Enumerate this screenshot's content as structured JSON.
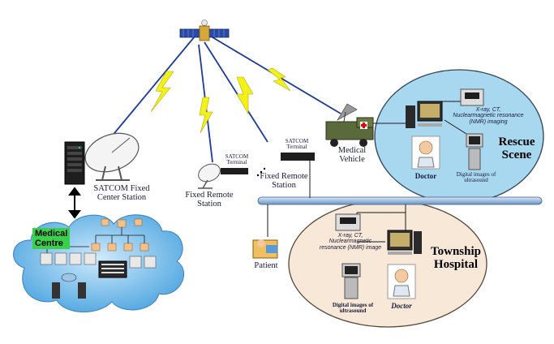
{
  "labels": {
    "satcom_fixed_center": "SATCOM Fixed\nCenter Station",
    "medical_centre": "Medical\nCentre",
    "fixed_remote_1": "Fixed Remote\nStation",
    "satcom_terminal_1": "SATCOM\nTerminal",
    "fixed_remote_2": "Fixed Remote\nStation",
    "satcom_terminal_2": "SATCOM\nTerminal",
    "medical_vehicle": "Medical\nVehicle",
    "patient": "Patient",
    "rescue_scene": "Rescue\nScene",
    "rescue_xray": "X-ray, CT,\nNuclearmagnetic resonance\n(NMR) imaging",
    "rescue_doctor": "Doctor",
    "rescue_ultrasound": "Digital images of\nultrasound",
    "township_hospital": "Township\nHospital",
    "township_xray": "X-ray, CT,\nNuclearmagnetic\nresonance (NMR) image",
    "township_ultrasound": "Digital images of\nultrasound",
    "township_doctor": "Doctor"
  },
  "colors": {
    "rescue_bg": "#a8d8f0",
    "township_bg": "#f7e8d8",
    "cloud": "#6fb8e8",
    "bus": "#8fb4d8",
    "lightning": "#f2f21a",
    "link_blue": "#1a3aa0",
    "medical_centre_tag": "#39d14a"
  }
}
